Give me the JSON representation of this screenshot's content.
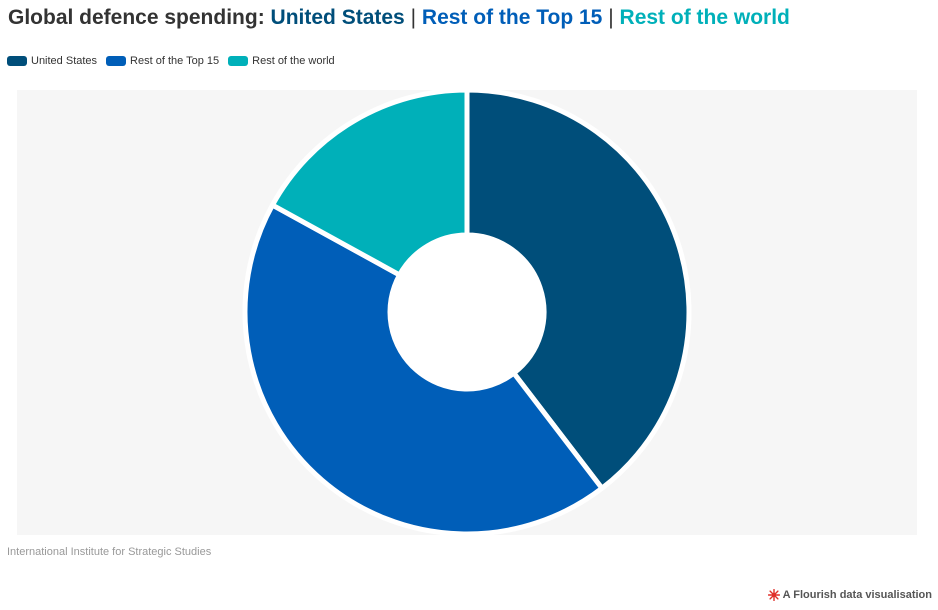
{
  "title": {
    "prefix": "Global defence spending:",
    "separator": "|"
  },
  "chart_data": {
    "type": "pie",
    "donut": true,
    "categories": [
      "United States",
      "Rest of the Top 15",
      "Rest of the world"
    ],
    "values": [
      39.6,
      43.4,
      17.0
    ],
    "colors": [
      "#004e7a",
      "#005eb8",
      "#00b0b9"
    ],
    "legend": "top-left"
  },
  "source": "International Institute for Strategic Studies",
  "credit": {
    "text": "A Flourish data visualisation",
    "icon": "flourish-logo-icon",
    "icon_color": "#e0302a"
  },
  "background_color": "#f6f6f6"
}
